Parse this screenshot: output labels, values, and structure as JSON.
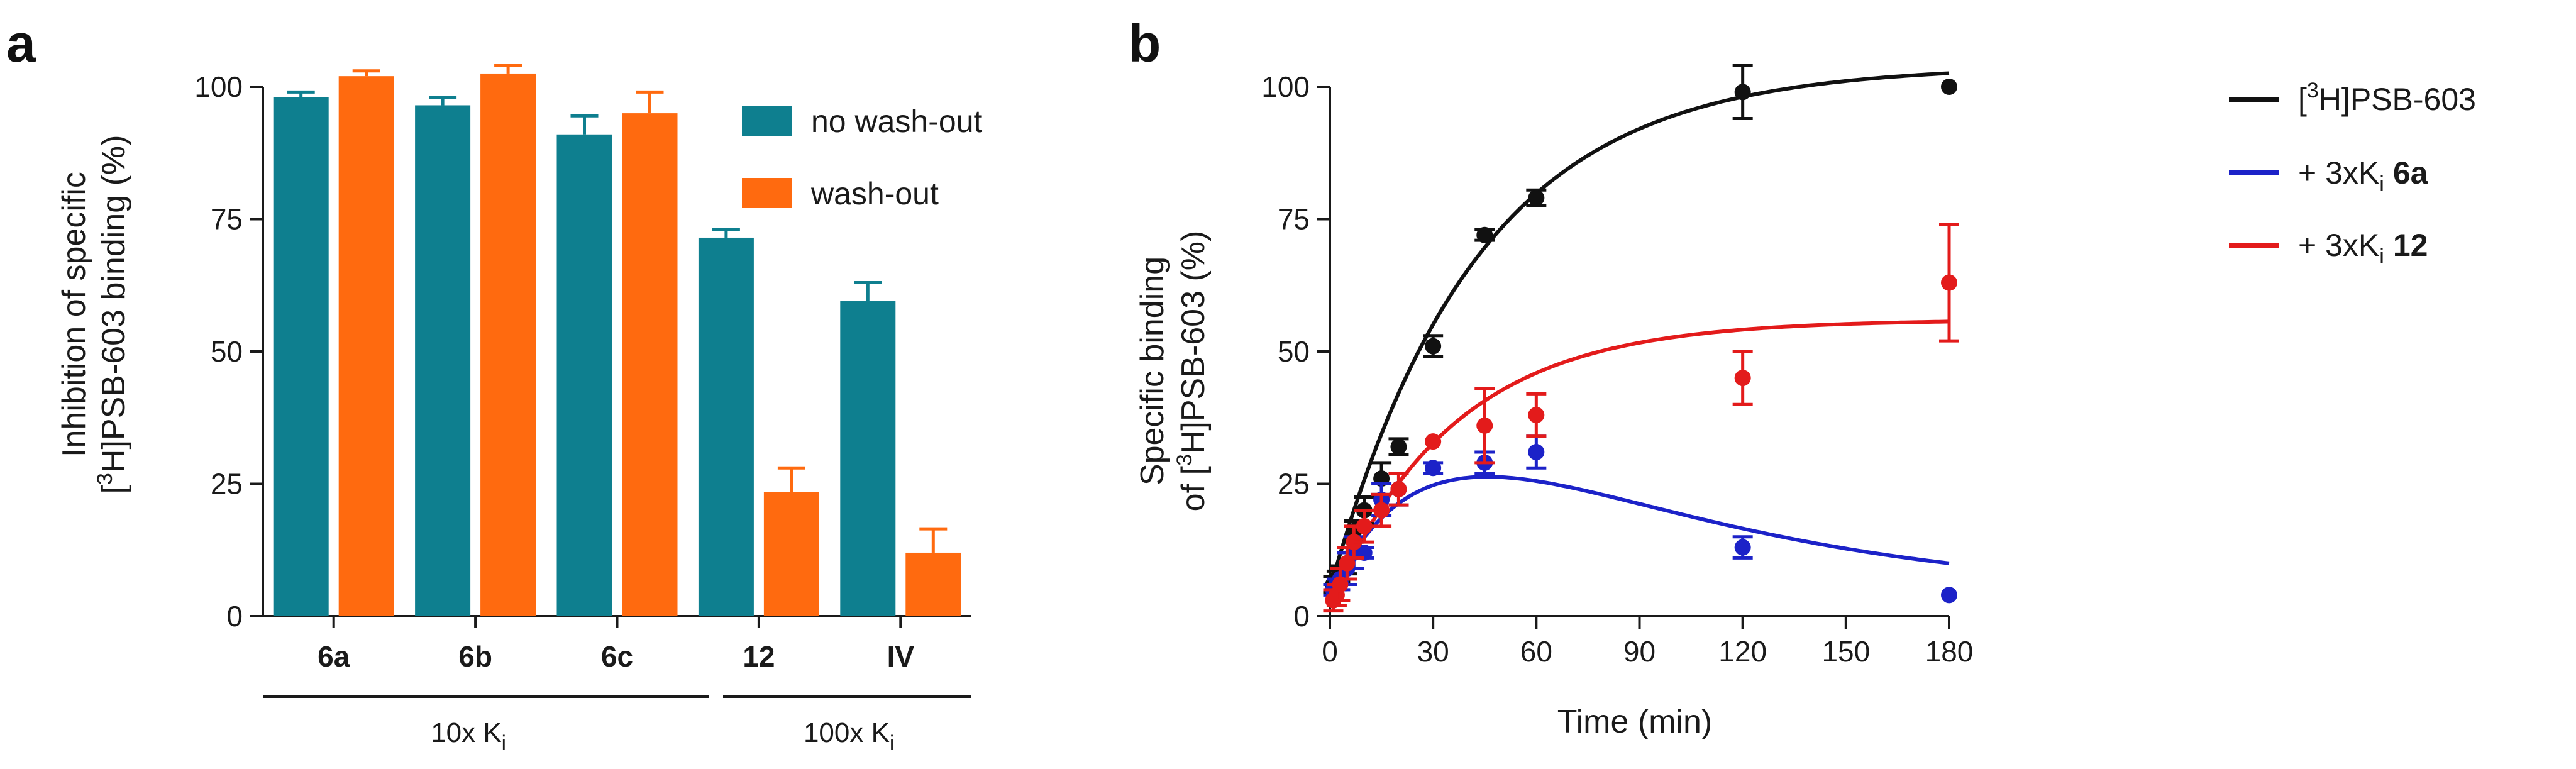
{
  "colors": {
    "no_washout": "#0e7f8f",
    "washout": "#ff6a0f",
    "radioligand": "#111111",
    "cmpd_6a": "#1c22c8",
    "cmpd_12": "#e31b1b",
    "axis": "#1a1a1a"
  },
  "panel_a": {
    "letter": "a",
    "group_label_1": "10x K",
    "group_label_1_sub": "i",
    "group_label_2": "100x K",
    "group_label_2_sub": "i"
  },
  "panel_b": {
    "letter": "b"
  },
  "chart_data": [
    {
      "id": "panel-a",
      "type": "bar",
      "ylabel_line1": "Inhibition of specific",
      "ylabel_line2_pre": "[",
      "ylabel_line2_sup": "3",
      "ylabel_line2_post": "H]PSB-603 binding (%)",
      "ylim": [
        0,
        100
      ],
      "yticks": [
        0,
        25,
        50,
        75,
        100
      ],
      "categories": [
        "6a",
        "6b",
        "6c",
        "12",
        "IV"
      ],
      "series": [
        {
          "name": "no wash-out",
          "color_key": "no_washout",
          "values": [
            98,
            96.5,
            91,
            71.5,
            59.5
          ],
          "errors": [
            1,
            1.5,
            3.5,
            1.5,
            3.5
          ]
        },
        {
          "name": "wash-out",
          "color_key": "washout",
          "values": [
            102,
            102.5,
            95,
            23.5,
            12
          ],
          "errors": [
            1,
            1.5,
            4,
            4.5,
            4.5
          ]
        }
      ],
      "legend": [
        "no wash-out",
        "wash-out"
      ]
    },
    {
      "id": "panel-b",
      "type": "line",
      "xlabel": "Time (min)",
      "ylabel_line1": "Specific binding",
      "ylabel_line2_pre": "of [",
      "ylabel_line2_sup": "3",
      "ylabel_line2_post": "H]PSB-603 (%)",
      "xlim": [
        0,
        180
      ],
      "ylim": [
        0,
        100
      ],
      "xticks": [
        0,
        30,
        60,
        90,
        120,
        150,
        180
      ],
      "yticks": [
        0,
        25,
        50,
        75,
        100
      ],
      "series": [
        {
          "name": "[3H]PSB-603",
          "legend_pre": "[",
          "legend_sup": "3",
          "legend_post": "H]PSB-603",
          "legend_bold": "",
          "color_key": "radioligand",
          "x": [
            1,
            2,
            3,
            5,
            7,
            10,
            15,
            20,
            30,
            45,
            60,
            120,
            180
          ],
          "y": [
            6,
            7,
            8,
            10,
            16,
            20,
            26,
            32,
            51,
            72,
            79,
            99,
            100
          ],
          "err": [
            1.5,
            1.5,
            1.5,
            2,
            2,
            2.5,
            3,
            1.5,
            2,
            1,
            1.5,
            5,
            0
          ],
          "fit": {
            "model": "association",
            "ymax": 104,
            "k": 0.0235,
            "y0": 5
          }
        },
        {
          "name": "+ 3xKi 6a",
          "legend_pre": "+ 3xK",
          "legend_sub": "i",
          "legend_bold": "6a",
          "color_key": "cmpd_6a",
          "x": [
            1,
            2,
            3,
            5,
            7,
            10,
            15,
            20,
            30,
            45,
            60,
            120,
            180
          ],
          "y": [
            5,
            6,
            7,
            9,
            12,
            12,
            22,
            24,
            28,
            29,
            31,
            13,
            4
          ],
          "err": [
            1,
            1,
            2,
            3,
            3,
            1,
            3,
            3,
            1,
            2,
            3,
            2,
            0
          ],
          "fit": {
            "model": "biphasic",
            "A": 52,
            "ka": 0.033,
            "kb": 0.0135,
            "y0": 4
          }
        },
        {
          "name": "+ 3xKi 12",
          "legend_pre": "+ 3xK",
          "legend_sub": "i",
          "legend_bold": "12",
          "color_key": "cmpd_12",
          "x": [
            1,
            2,
            3,
            5,
            7,
            10,
            15,
            20,
            30,
            45,
            60,
            120,
            180
          ],
          "y": [
            3,
            4,
            6,
            10,
            14,
            17,
            20,
            24,
            33,
            36,
            38,
            45,
            63
          ],
          "err": [
            2,
            2,
            3,
            3,
            3,
            3,
            3,
            3,
            0,
            7,
            4,
            5,
            11
          ],
          "fit": {
            "model": "association",
            "ymax": 56,
            "k": 0.028,
            "y0": 2
          }
        }
      ]
    }
  ]
}
